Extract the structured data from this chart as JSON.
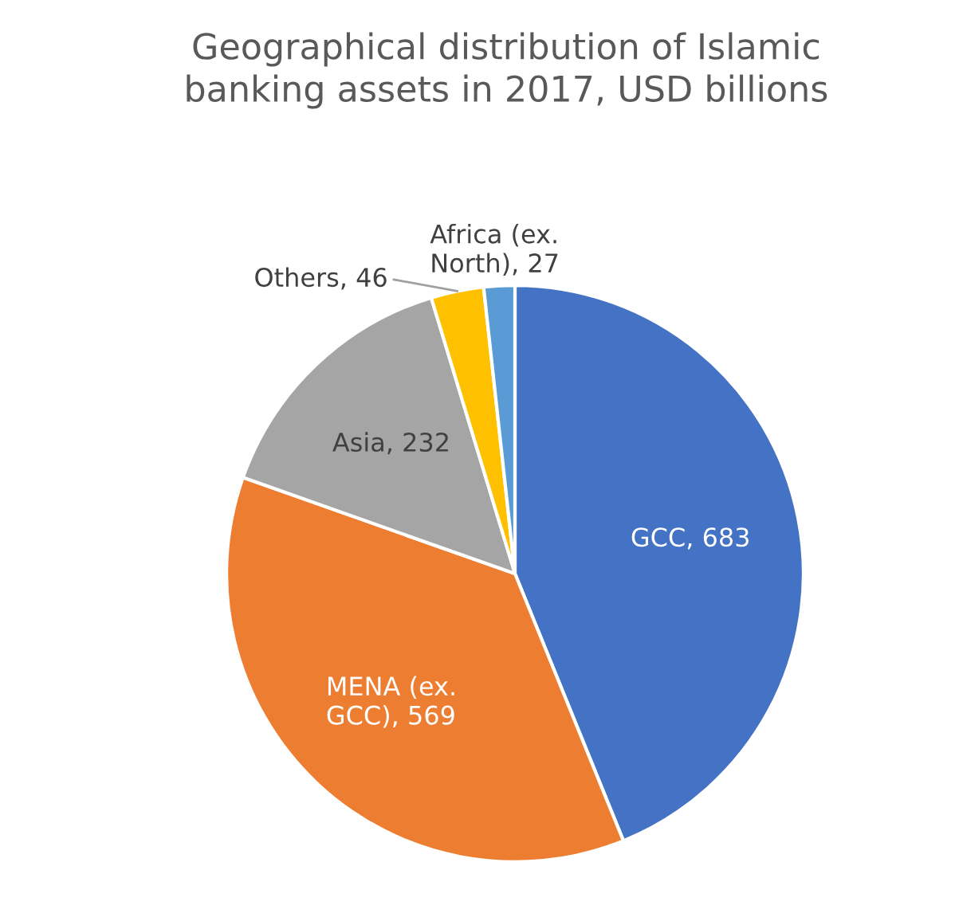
{
  "chart_data": {
    "type": "pie",
    "title": "Geographical distribution of Islamic banking assets in 2017, USD billions",
    "categories": [
      "GCC",
      "MENA (ex. GCC)",
      "Asia",
      "Others",
      "Africa (ex. North)"
    ],
    "values": [
      683,
      569,
      232,
      46,
      27
    ],
    "colors": [
      "#4472c4",
      "#ed7d31",
      "#a5a5a5",
      "#ffc000",
      "#5b9bd5"
    ],
    "value_labels": [
      ", 683",
      ", 569",
      ", 232",
      ", 46",
      ", 27"
    ],
    "legend": false
  }
}
